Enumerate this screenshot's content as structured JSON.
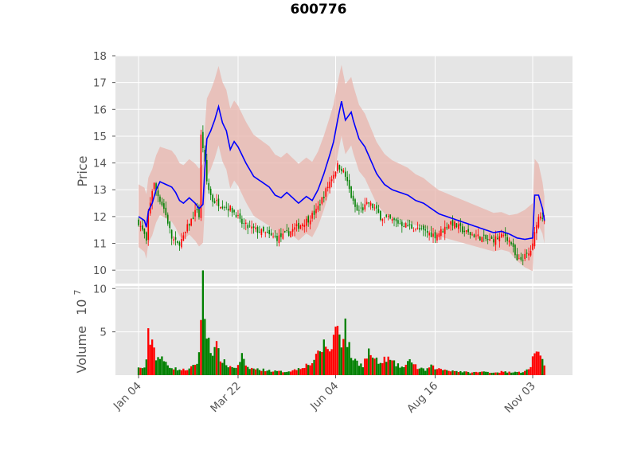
{
  "chart_data": {
    "type": "candlestick",
    "title": "600776",
    "price_panel": {
      "ylabel": "Price",
      "ylim": [
        9.5,
        18
      ],
      "yticks": [
        10,
        11,
        12,
        13,
        14,
        15,
        16,
        17,
        18
      ],
      "grid": true,
      "background": "#e5e5e5",
      "up_color": "#ff0000",
      "down_color": "#008000",
      "ma_line_color": "#0000ff",
      "band_color": "#e8b4ac"
    },
    "volume_panel": {
      "ylabel": "Volume",
      "ylabel_exponent": "10",
      "ylabel_power": "7",
      "ylim": [
        0,
        10.3
      ],
      "yticks": [
        5,
        10
      ],
      "grid": true,
      "unit_multiplier": 10000000
    },
    "x_axis": {
      "type": "date",
      "tick_labels": [
        "Jan 04",
        "Mar 22",
        "Jun 04",
        "Aug 16",
        "Nov 03"
      ],
      "tick_positions": [
        0,
        51,
        101,
        152,
        202
      ],
      "total_sessions": 215
    },
    "ma_anchors": [
      [
        0,
        12.0
      ],
      [
        3,
        11.85
      ],
      [
        4,
        11.6
      ],
      [
        5,
        12.2
      ],
      [
        7,
        12.5
      ],
      [
        9,
        13.0
      ],
      [
        11,
        13.3
      ],
      [
        14,
        13.2
      ],
      [
        17,
        13.1
      ],
      [
        19,
        12.9
      ],
      [
        21,
        12.6
      ],
      [
        23,
        12.5
      ],
      [
        26,
        12.7
      ],
      [
        29,
        12.5
      ],
      [
        31,
        12.3
      ],
      [
        33,
        12.45
      ],
      [
        34,
        13.8
      ],
      [
        35,
        14.9
      ],
      [
        37,
        15.2
      ],
      [
        39,
        15.6
      ],
      [
        41,
        16.1
      ],
      [
        43,
        15.5
      ],
      [
        45,
        15.2
      ],
      [
        47,
        14.5
      ],
      [
        49,
        14.8
      ],
      [
        51,
        14.6
      ],
      [
        55,
        14.0
      ],
      [
        59,
        13.5
      ],
      [
        63,
        13.3
      ],
      [
        67,
        13.1
      ],
      [
        70,
        12.8
      ],
      [
        73,
        12.7
      ],
      [
        76,
        12.9
      ],
      [
        79,
        12.7
      ],
      [
        82,
        12.5
      ],
      [
        86,
        12.75
      ],
      [
        89,
        12.6
      ],
      [
        92,
        13.0
      ],
      [
        95,
        13.6
      ],
      [
        98,
        14.3
      ],
      [
        100,
        14.8
      ],
      [
        102,
        15.6
      ],
      [
        104,
        16.3
      ],
      [
        106,
        15.6
      ],
      [
        109,
        15.9
      ],
      [
        110,
        15.6
      ],
      [
        113,
        14.9
      ],
      [
        116,
        14.6
      ],
      [
        119,
        14.1
      ],
      [
        122,
        13.6
      ],
      [
        126,
        13.2
      ],
      [
        130,
        13.0
      ],
      [
        134,
        12.9
      ],
      [
        138,
        12.8
      ],
      [
        142,
        12.6
      ],
      [
        146,
        12.5
      ],
      [
        150,
        12.3
      ],
      [
        154,
        12.1
      ],
      [
        158,
        12.0
      ],
      [
        162,
        11.9
      ],
      [
        166,
        11.8
      ],
      [
        170,
        11.7
      ],
      [
        174,
        11.6
      ],
      [
        178,
        11.5
      ],
      [
        182,
        11.4
      ],
      [
        186,
        11.45
      ],
      [
        190,
        11.35
      ],
      [
        194,
        11.2
      ],
      [
        198,
        11.15
      ],
      [
        202,
        11.2
      ],
      [
        203,
        12.8
      ],
      [
        205,
        12.8
      ],
      [
        207,
        12.3
      ],
      [
        208,
        11.85
      ]
    ],
    "close_anchors": [
      [
        0,
        11.8
      ],
      [
        3,
        11.3
      ],
      [
        4,
        11.0
      ],
      [
        5,
        12.1
      ],
      [
        7,
        13.0
      ],
      [
        8,
        13.2
      ],
      [
        10,
        12.8
      ],
      [
        13,
        12.3
      ],
      [
        15,
        11.8
      ],
      [
        17,
        11.2
      ],
      [
        20,
        10.95
      ],
      [
        23,
        11.2
      ],
      [
        25,
        11.6
      ],
      [
        28,
        12.0
      ],
      [
        30,
        12.3
      ],
      [
        31,
        12.0
      ],
      [
        32,
        15.0
      ],
      [
        33,
        14.6
      ],
      [
        35,
        13.3
      ],
      [
        36,
        13.0
      ],
      [
        38,
        12.6
      ],
      [
        41,
        12.5
      ],
      [
        44,
        12.4
      ],
      [
        47,
        12.3
      ],
      [
        50,
        12.1
      ],
      [
        52,
        11.8
      ],
      [
        56,
        11.6
      ],
      [
        60,
        11.5
      ],
      [
        64,
        11.4
      ],
      [
        68,
        11.25
      ],
      [
        71,
        11.2
      ],
      [
        75,
        11.3
      ],
      [
        79,
        11.5
      ],
      [
        83,
        11.7
      ],
      [
        87,
        11.9
      ],
      [
        91,
        12.2
      ],
      [
        95,
        12.8
      ],
      [
        98,
        13.3
      ],
      [
        100,
        13.6
      ],
      [
        102,
        13.9
      ],
      [
        104,
        13.8
      ],
      [
        106,
        13.5
      ],
      [
        108,
        13.0
      ],
      [
        110,
        12.5
      ],
      [
        112,
        12.2
      ],
      [
        115,
        12.3
      ],
      [
        118,
        12.5
      ],
      [
        121,
        12.3
      ],
      [
        124,
        12.0
      ],
      [
        128,
        11.9
      ],
      [
        132,
        11.8
      ],
      [
        136,
        11.7
      ],
      [
        140,
        11.6
      ],
      [
        144,
        11.5
      ],
      [
        148,
        11.4
      ],
      [
        152,
        11.3
      ],
      [
        156,
        11.5
      ],
      [
        160,
        11.8
      ],
      [
        164,
        11.6
      ],
      [
        168,
        11.4
      ],
      [
        172,
        11.3
      ],
      [
        176,
        11.2
      ],
      [
        180,
        11.1
      ],
      [
        184,
        11.2
      ],
      [
        188,
        11.3
      ],
      [
        191,
        11.0
      ],
      [
        194,
        10.3
      ],
      [
        196,
        10.4
      ],
      [
        198,
        10.5
      ],
      [
        200,
        10.6
      ],
      [
        202,
        10.9
      ],
      [
        204,
        11.8
      ],
      [
        206,
        12.1
      ],
      [
        208,
        11.9
      ]
    ],
    "volume_anchors": [
      [
        0,
        0.8
      ],
      [
        3,
        0.9
      ],
      [
        4,
        1.5
      ],
      [
        5,
        4.5
      ],
      [
        7,
        4.0
      ],
      [
        9,
        2.2
      ],
      [
        12,
        1.8
      ],
      [
        15,
        1.2
      ],
      [
        18,
        0.8
      ],
      [
        22,
        0.6
      ],
      [
        26,
        0.7
      ],
      [
        28,
        1.0
      ],
      [
        30,
        1.5
      ],
      [
        31,
        2.5
      ],
      [
        32,
        7.5
      ],
      [
        33,
        10.2
      ],
      [
        34,
        6.5
      ],
      [
        35,
        5.0
      ],
      [
        36,
        4.2
      ],
      [
        38,
        2.5
      ],
      [
        40,
        3.2
      ],
      [
        42,
        2.0
      ],
      [
        45,
        1.2
      ],
      [
        48,
        0.9
      ],
      [
        51,
        1.0
      ],
      [
        53,
        2.3
      ],
      [
        55,
        0.9
      ],
      [
        60,
        0.7
      ],
      [
        65,
        0.6
      ],
      [
        70,
        0.45
      ],
      [
        75,
        0.4
      ],
      [
        80,
        0.6
      ],
      [
        84,
        1.0
      ],
      [
        88,
        1.3
      ],
      [
        91,
        2.0
      ],
      [
        93,
        2.8
      ],
      [
        95,
        3.5
      ],
      [
        97,
        3.2
      ],
      [
        99,
        2.9
      ],
      [
        100,
        4.5
      ],
      [
        102,
        6.0
      ],
      [
        104,
        4.0
      ],
      [
        106,
        5.8
      ],
      [
        107,
        4.0
      ],
      [
        109,
        2.2
      ],
      [
        112,
        1.5
      ],
      [
        115,
        1.2
      ],
      [
        118,
        2.7
      ],
      [
        121,
        1.8
      ],
      [
        124,
        1.3
      ],
      [
        127,
        2.0
      ],
      [
        130,
        1.5
      ],
      [
        133,
        1.1
      ],
      [
        136,
        0.9
      ],
      [
        140,
        1.8
      ],
      [
        143,
        0.8
      ],
      [
        147,
        0.6
      ],
      [
        150,
        1.0
      ],
      [
        154,
        0.7
      ],
      [
        158,
        0.6
      ],
      [
        162,
        0.5
      ],
      [
        166,
        0.4
      ],
      [
        170,
        0.3
      ],
      [
        174,
        0.35
      ],
      [
        178,
        0.4
      ],
      [
        182,
        0.3
      ],
      [
        186,
        0.4
      ],
      [
        190,
        0.35
      ],
      [
        194,
        0.45
      ],
      [
        197,
        0.3
      ],
      [
        199,
        0.6
      ],
      [
        201,
        1.0
      ],
      [
        203,
        3.0
      ],
      [
        205,
        2.2
      ],
      [
        207,
        1.5
      ],
      [
        208,
        1.2
      ]
    ],
    "band": {
      "upper_offsets": [
        [
          0,
          1.2
        ],
        [
          32,
          1.5
        ],
        [
          60,
          1.55
        ],
        [
          100,
          1.4
        ],
        [
          150,
          0.9
        ],
        [
          190,
          0.7
        ],
        [
          203,
          1.35
        ],
        [
          208,
          0.9
        ]
      ]
    }
  }
}
